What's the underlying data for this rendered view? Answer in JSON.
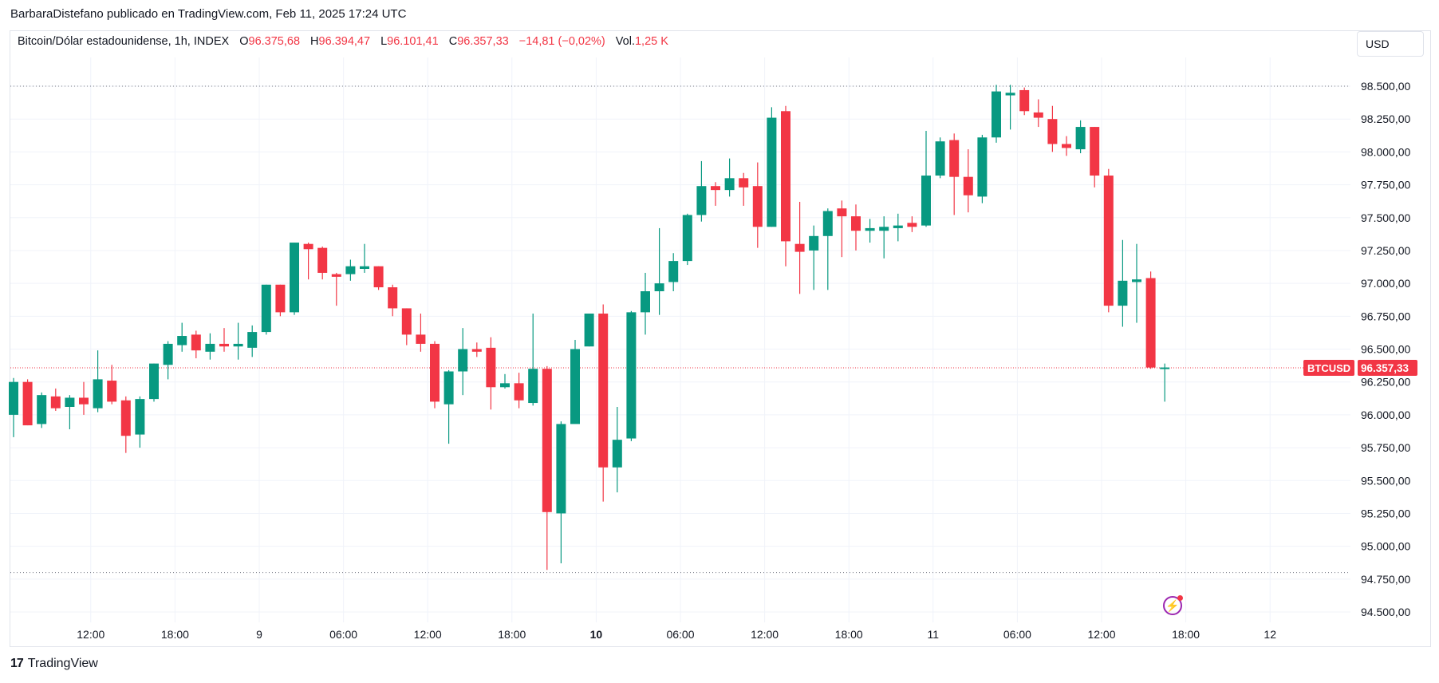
{
  "publisher_line": "BarbaraDistefano publicado en TradingView.com, Feb 11, 2025 17:24 UTC",
  "legend": {
    "symbol": "Bitcoin/Dólar estadounidense, 1h, INDEX",
    "o_label": "O",
    "o_value": "96.375,68",
    "h_label": "H",
    "h_value": "96.394,47",
    "l_label": "L",
    "l_value": "96.101,41",
    "c_label": "C",
    "c_value": "96.357,33",
    "change": "−14,81 (−0,02%)",
    "vol_label": "Vol.",
    "vol_value": "1,25 K"
  },
  "currency_button": "USD",
  "price_tag": {
    "symbol": "BTCUSD",
    "value": "96.357,33"
  },
  "brand": {
    "logo_text": "17",
    "name": "TradingView"
  },
  "colors": {
    "up": "#089981",
    "down": "#f23645",
    "grid": "#f0f3fa",
    "axis_text": "#131722"
  },
  "chart_data": {
    "type": "candlestick",
    "interval": "1h",
    "y_ticks": [
      98500,
      98250,
      98000,
      97750,
      97500,
      97250,
      97000,
      96750,
      96500,
      96250,
      96000,
      95750,
      95500,
      95250,
      95000,
      94750,
      94500
    ],
    "y_tick_labels": [
      "98.500,00",
      "98.250,00",
      "98.000,00",
      "97.750,00",
      "97.500,00",
      "97.250,00",
      "97.000,00",
      "96.750,00",
      "96.500,00",
      "96.250,00",
      "96.000,00",
      "95.750,00",
      "95.500,00",
      "95.250,00",
      "95.000,00",
      "94.750,00",
      "94.500,00"
    ],
    "x_ticks": [
      {
        "index": 5.5,
        "label": "12:00",
        "bold": false
      },
      {
        "index": 11.5,
        "label": "18:00",
        "bold": false
      },
      {
        "index": 17.5,
        "label": "9",
        "bold": false
      },
      {
        "index": 23.5,
        "label": "06:00",
        "bold": false
      },
      {
        "index": 29.5,
        "label": "12:00",
        "bold": false
      },
      {
        "index": 35.5,
        "label": "18:00",
        "bold": false
      },
      {
        "index": 41.5,
        "label": "10",
        "bold": true
      },
      {
        "index": 47.5,
        "label": "06:00",
        "bold": false
      },
      {
        "index": 53.5,
        "label": "12:00",
        "bold": false
      },
      {
        "index": 59.5,
        "label": "18:00",
        "bold": false
      },
      {
        "index": 65.5,
        "label": "11",
        "bold": false
      },
      {
        "index": 71.5,
        "label": "06:00",
        "bold": false
      },
      {
        "index": 77.5,
        "label": "12:00",
        "bold": false
      },
      {
        "index": 83.5,
        "label": "18:00",
        "bold": false
      },
      {
        "index": 89.5,
        "label": "12",
        "bold": false
      }
    ],
    "high_line": 98500,
    "low_line": 94800,
    "last_price": 96357.33,
    "candles": [
      [
        96000,
        96250,
        95830,
        96280
      ],
      [
        96250,
        95920,
        95920,
        96270
      ],
      [
        95930,
        96150,
        95900,
        96170
      ],
      [
        96140,
        96050,
        96030,
        96200
      ],
      [
        96060,
        96130,
        95890,
        96150
      ],
      [
        96130,
        96080,
        96000,
        96250
      ],
      [
        96050,
        96270,
        96020,
        96490
      ],
      [
        96260,
        96100,
        96080,
        96380
      ],
      [
        96110,
        95840,
        95710,
        96140
      ],
      [
        95850,
        96120,
        95750,
        96140
      ],
      [
        96120,
        96390,
        96100,
        96390
      ],
      [
        96380,
        96540,
        96270,
        96560
      ],
      [
        96530,
        96600,
        96480,
        96700
      ],
      [
        96610,
        96490,
        96430,
        96640
      ],
      [
        96480,
        96540,
        96420,
        96620
      ],
      [
        96540,
        96520,
        96480,
        96660
      ],
      [
        96520,
        96540,
        96420,
        96700
      ],
      [
        96510,
        96630,
        96440,
        96680
      ],
      [
        96630,
        96990,
        96610,
        96990
      ],
      [
        96990,
        96780,
        96750,
        96990
      ],
      [
        96780,
        97310,
        96760,
        97310
      ],
      [
        97300,
        97260,
        97030,
        97310
      ],
      [
        97270,
        97080,
        97030,
        97280
      ],
      [
        97070,
        97050,
        96830,
        97080
      ],
      [
        97070,
        97130,
        97020,
        97180
      ],
      [
        97110,
        97130,
        97080,
        97300
      ],
      [
        97130,
        96970,
        96950,
        97130
      ],
      [
        96970,
        96810,
        96750,
        96990
      ],
      [
        96810,
        96610,
        96530,
        96810
      ],
      [
        96610,
        96540,
        96480,
        96770
      ],
      [
        96540,
        96100,
        96050,
        96560
      ],
      [
        96080,
        96330,
        95780,
        96340
      ],
      [
        96330,
        96500,
        96150,
        96660
      ],
      [
        96500,
        96480,
        96440,
        96550
      ],
      [
        96510,
        96210,
        96040,
        96590
      ],
      [
        96210,
        96240,
        96200,
        96310
      ],
      [
        96240,
        96110,
        96050,
        96320
      ],
      [
        96090,
        96350,
        96070,
        96770
      ],
      [
        96350,
        95260,
        94820,
        96370
      ],
      [
        95250,
        95930,
        94870,
        95950
      ],
      [
        95930,
        96500,
        95940,
        96570
      ],
      [
        96520,
        96770,
        96520,
        96770
      ],
      [
        96770,
        95600,
        95340,
        96840
      ],
      [
        95600,
        95810,
        95410,
        96060
      ],
      [
        95820,
        96780,
        95800,
        96790
      ],
      [
        96780,
        96940,
        96610,
        97080
      ],
      [
        96940,
        97000,
        96760,
        97420
      ],
      [
        97010,
        97170,
        96940,
        97230
      ],
      [
        97170,
        97520,
        97140,
        97530
      ],
      [
        97520,
        97740,
        97470,
        97930
      ],
      [
        97740,
        97710,
        97590,
        97770
      ],
      [
        97710,
        97800,
        97660,
        97950
      ],
      [
        97800,
        97730,
        97590,
        97840
      ],
      [
        97740,
        97430,
        97270,
        97920
      ],
      [
        97430,
        98260,
        97430,
        98340
      ],
      [
        98310,
        97320,
        97130,
        98350
      ],
      [
        97300,
        97240,
        96920,
        97620
      ],
      [
        97250,
        97360,
        96950,
        97440
      ],
      [
        97360,
        97550,
        96950,
        97570
      ],
      [
        97570,
        97510,
        97200,
        97630
      ],
      [
        97510,
        97400,
        97250,
        97600
      ],
      [
        97400,
        97420,
        97310,
        97490
      ],
      [
        97400,
        97430,
        97190,
        97510
      ],
      [
        97420,
        97440,
        97320,
        97530
      ],
      [
        97460,
        97430,
        97390,
        97510
      ],
      [
        97440,
        97820,
        97430,
        98160
      ],
      [
        97820,
        98080,
        97800,
        98110
      ],
      [
        98090,
        97810,
        97520,
        98140
      ],
      [
        97810,
        97670,
        97540,
        98020
      ],
      [
        97660,
        98110,
        97610,
        98130
      ],
      [
        98110,
        98460,
        98070,
        98510
      ],
      [
        98430,
        98450,
        98170,
        98510
      ],
      [
        98470,
        98310,
        98280,
        98490
      ],
      [
        98300,
        98260,
        98190,
        98400
      ],
      [
        98250,
        98060,
        98000,
        98350
      ],
      [
        98060,
        98030,
        97970,
        98120
      ],
      [
        98020,
        98190,
        97990,
        98240
      ],
      [
        98190,
        97820,
        97730,
        98190
      ],
      [
        97820,
        96830,
        96780,
        97870
      ],
      [
        96830,
        97020,
        96670,
        97330
      ],
      [
        97010,
        97030,
        96700,
        97300
      ],
      [
        97040,
        96360,
        96350,
        97090
      ],
      [
        96360,
        96360,
        96100,
        96390
      ]
    ]
  }
}
